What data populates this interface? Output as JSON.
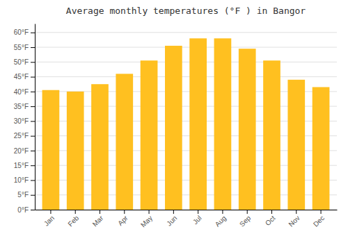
{
  "chart_data": {
    "type": "bar",
    "title": "Average monthly temperatures (°F ) in Bangor",
    "categories": [
      "Jan",
      "Feb",
      "Mar",
      "Apr",
      "May",
      "Jun",
      "Jul",
      "Aug",
      "Sep",
      "Oct",
      "Nov",
      "Dec"
    ],
    "values": [
      40.5,
      40.0,
      42.5,
      46.0,
      50.5,
      55.5,
      58.0,
      58.0,
      54.5,
      50.5,
      44.0,
      41.5
    ],
    "color": "#FFC020",
    "ylim": [
      0,
      63
    ],
    "yticks": [
      {
        "value": 0,
        "label": "0°F"
      },
      {
        "value": 5,
        "label": "5°F"
      },
      {
        "value": 10,
        "label": "10°F"
      },
      {
        "value": 15,
        "label": "15°F"
      },
      {
        "value": 20,
        "label": "20°F"
      },
      {
        "value": 25,
        "label": "25°F"
      },
      {
        "value": 30,
        "label": "30°F"
      },
      {
        "value": 35,
        "label": "35°F"
      },
      {
        "value": 40,
        "label": "40°F"
      },
      {
        "value": 45,
        "label": "45°F"
      },
      {
        "value": 50,
        "label": "50°F"
      },
      {
        "value": 55,
        "label": "55°F"
      },
      {
        "value": 60,
        "label": "60°F"
      }
    ],
    "grid": true
  }
}
